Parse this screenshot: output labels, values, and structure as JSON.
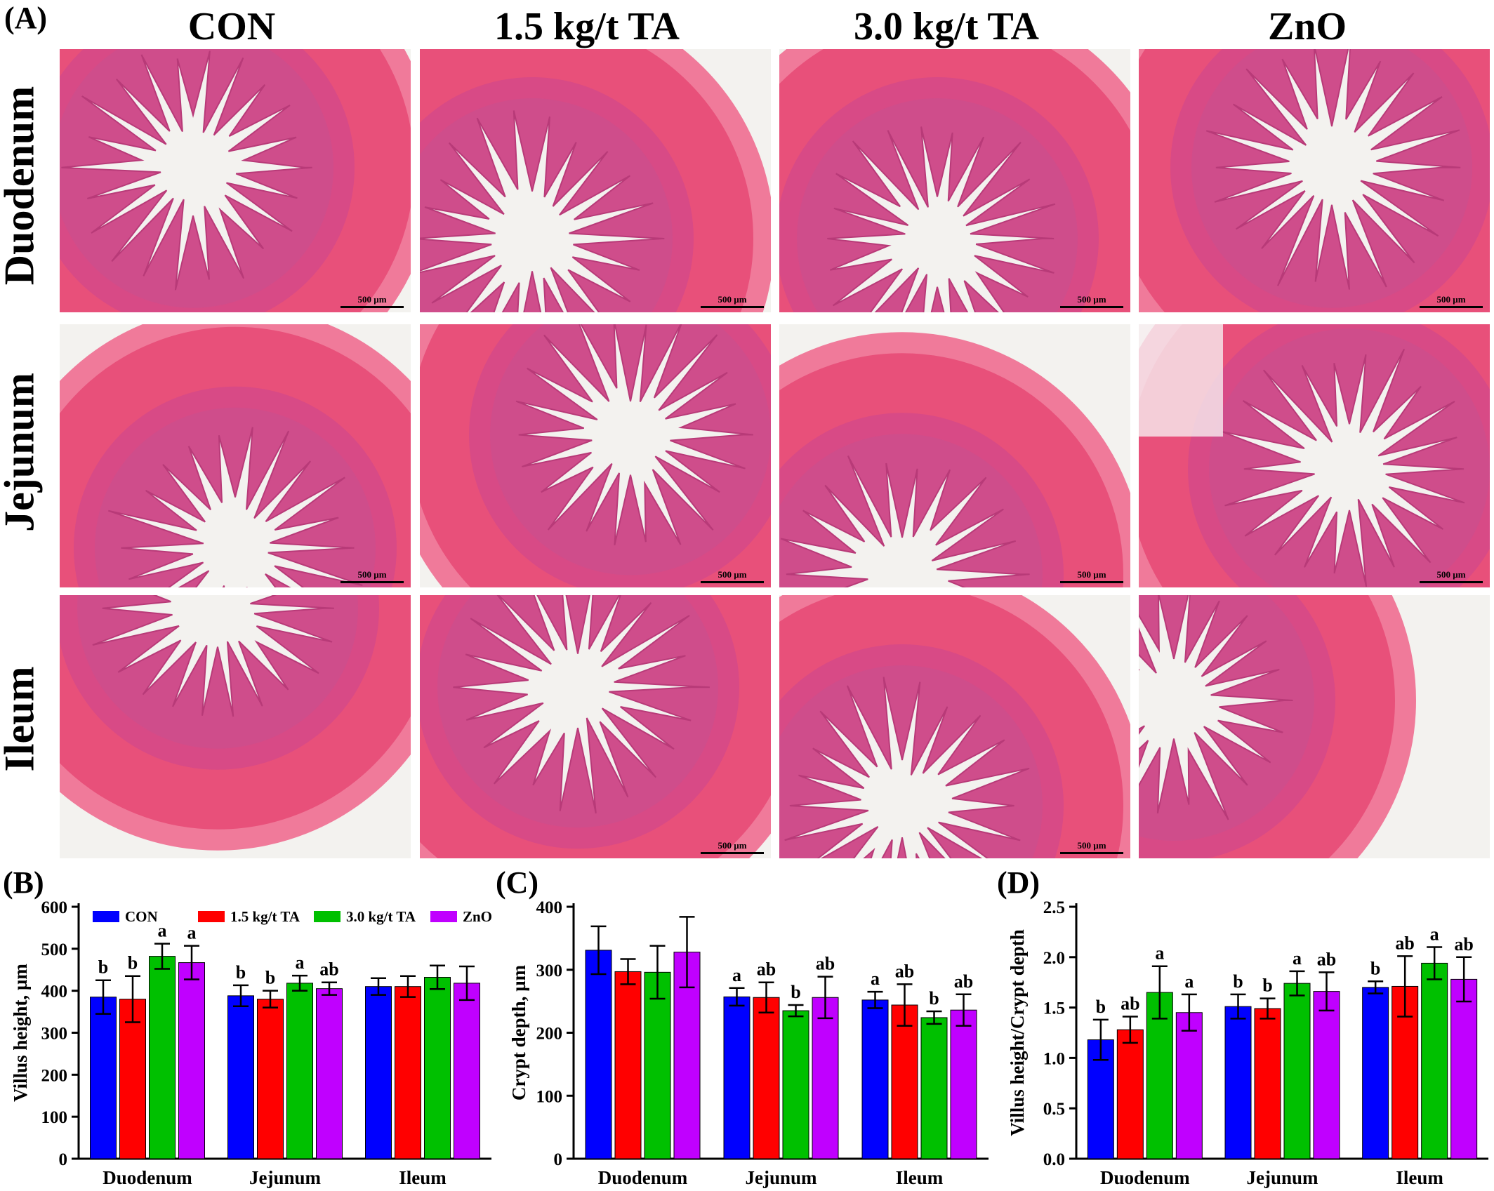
{
  "panel_a": {
    "tag": "(A)",
    "columns": [
      "CON",
      "1.5 kg/t TA",
      "3.0 kg/t TA",
      "ZnO"
    ],
    "rows": [
      "Duodenum",
      "Jejunum",
      "Ileum"
    ],
    "scale_bar_label": "500 µm",
    "tissue_color": "#e8507a",
    "lumen_color": "#f3f2ef"
  },
  "legend": [
    "CON",
    "1.5 kg/t TA",
    "3.0 kg/t TA",
    "ZnO"
  ],
  "colors": [
    "#0000ff",
    "#ff0000",
    "#00c000",
    "#c000ff"
  ],
  "chart_data": [
    {
      "type": "bar",
      "tag": "(B)",
      "ylabel": "Villus height, µm",
      "xlabel": "",
      "ylim": [
        0,
        600
      ],
      "yticks": [
        0,
        100,
        200,
        300,
        400,
        500,
        600
      ],
      "categories": [
        "Duodenum",
        "Jejunum",
        "Ileum"
      ],
      "legend_position": "top",
      "series": [
        {
          "name": "CON",
          "values": [
            385,
            388,
            410
          ],
          "errors": [
            40,
            25,
            20
          ],
          "letters": [
            "b",
            "b",
            ""
          ]
        },
        {
          "name": "1.5 kg/t TA",
          "values": [
            380,
            380,
            410
          ],
          "errors": [
            55,
            20,
            25
          ],
          "letters": [
            "b",
            "b",
            ""
          ]
        },
        {
          "name": "3.0 kg/t TA",
          "values": [
            482,
            418,
            432
          ],
          "errors": [
            30,
            18,
            28
          ],
          "letters": [
            "a",
            "a",
            ""
          ]
        },
        {
          "name": "ZnO",
          "values": [
            467,
            405,
            418
          ],
          "errors": [
            40,
            15,
            40
          ],
          "letters": [
            "a",
            "ab",
            ""
          ]
        }
      ]
    },
    {
      "type": "bar",
      "tag": "(C)",
      "ylabel": "Crypt depth, µm",
      "xlabel": "",
      "ylim": [
        0,
        400
      ],
      "yticks": [
        0,
        100,
        200,
        300,
        400
      ],
      "categories": [
        "Duodenum",
        "Jejunum",
        "Ileum"
      ],
      "series": [
        {
          "name": "CON",
          "values": [
            331,
            257,
            252
          ],
          "errors": [
            38,
            14,
            13
          ],
          "letters": [
            "",
            "a",
            "a"
          ]
        },
        {
          "name": "1.5 kg/t TA",
          "values": [
            297,
            256,
            244
          ],
          "errors": [
            20,
            24,
            33
          ],
          "letters": [
            "",
            "ab",
            "ab"
          ]
        },
        {
          "name": "3.0 kg/t TA",
          "values": [
            296,
            235,
            224
          ],
          "errors": [
            42,
            9,
            10
          ],
          "letters": [
            "",
            "b",
            "b"
          ]
        },
        {
          "name": "ZnO",
          "values": [
            328,
            256,
            236
          ],
          "errors": [
            56,
            33,
            25
          ],
          "letters": [
            "",
            "ab",
            "ab"
          ]
        }
      ]
    },
    {
      "type": "bar",
      "tag": "(D)",
      "ylabel": "Villus height/Crypt depth",
      "xlabel": "",
      "ylim": [
        0,
        2.5
      ],
      "yticks": [
        0.0,
        0.5,
        1.0,
        1.5,
        2.0,
        2.5
      ],
      "ytick_labels": [
        "0.0",
        "0.5",
        "1.0",
        "1.5",
        "2.0",
        "2.5"
      ],
      "categories": [
        "Duodenum",
        "Jejunum",
        "Ileum"
      ],
      "series": [
        {
          "name": "CON",
          "values": [
            1.18,
            1.51,
            1.7
          ],
          "errors": [
            0.2,
            0.12,
            0.06
          ],
          "letters": [
            "b",
            "b",
            "b"
          ]
        },
        {
          "name": "1.5 kg/t TA",
          "values": [
            1.28,
            1.49,
            1.71
          ],
          "errors": [
            0.13,
            0.1,
            0.3
          ],
          "letters": [
            "ab",
            "b",
            "ab"
          ]
        },
        {
          "name": "3.0 kg/t TA",
          "values": [
            1.65,
            1.74,
            1.94
          ],
          "errors": [
            0.26,
            0.12,
            0.16
          ],
          "letters": [
            "a",
            "a",
            "a"
          ]
        },
        {
          "name": "ZnO",
          "values": [
            1.45,
            1.66,
            1.78
          ],
          "errors": [
            0.18,
            0.19,
            0.22
          ],
          "letters": [
            "a",
            "ab",
            "ab"
          ]
        }
      ]
    }
  ]
}
